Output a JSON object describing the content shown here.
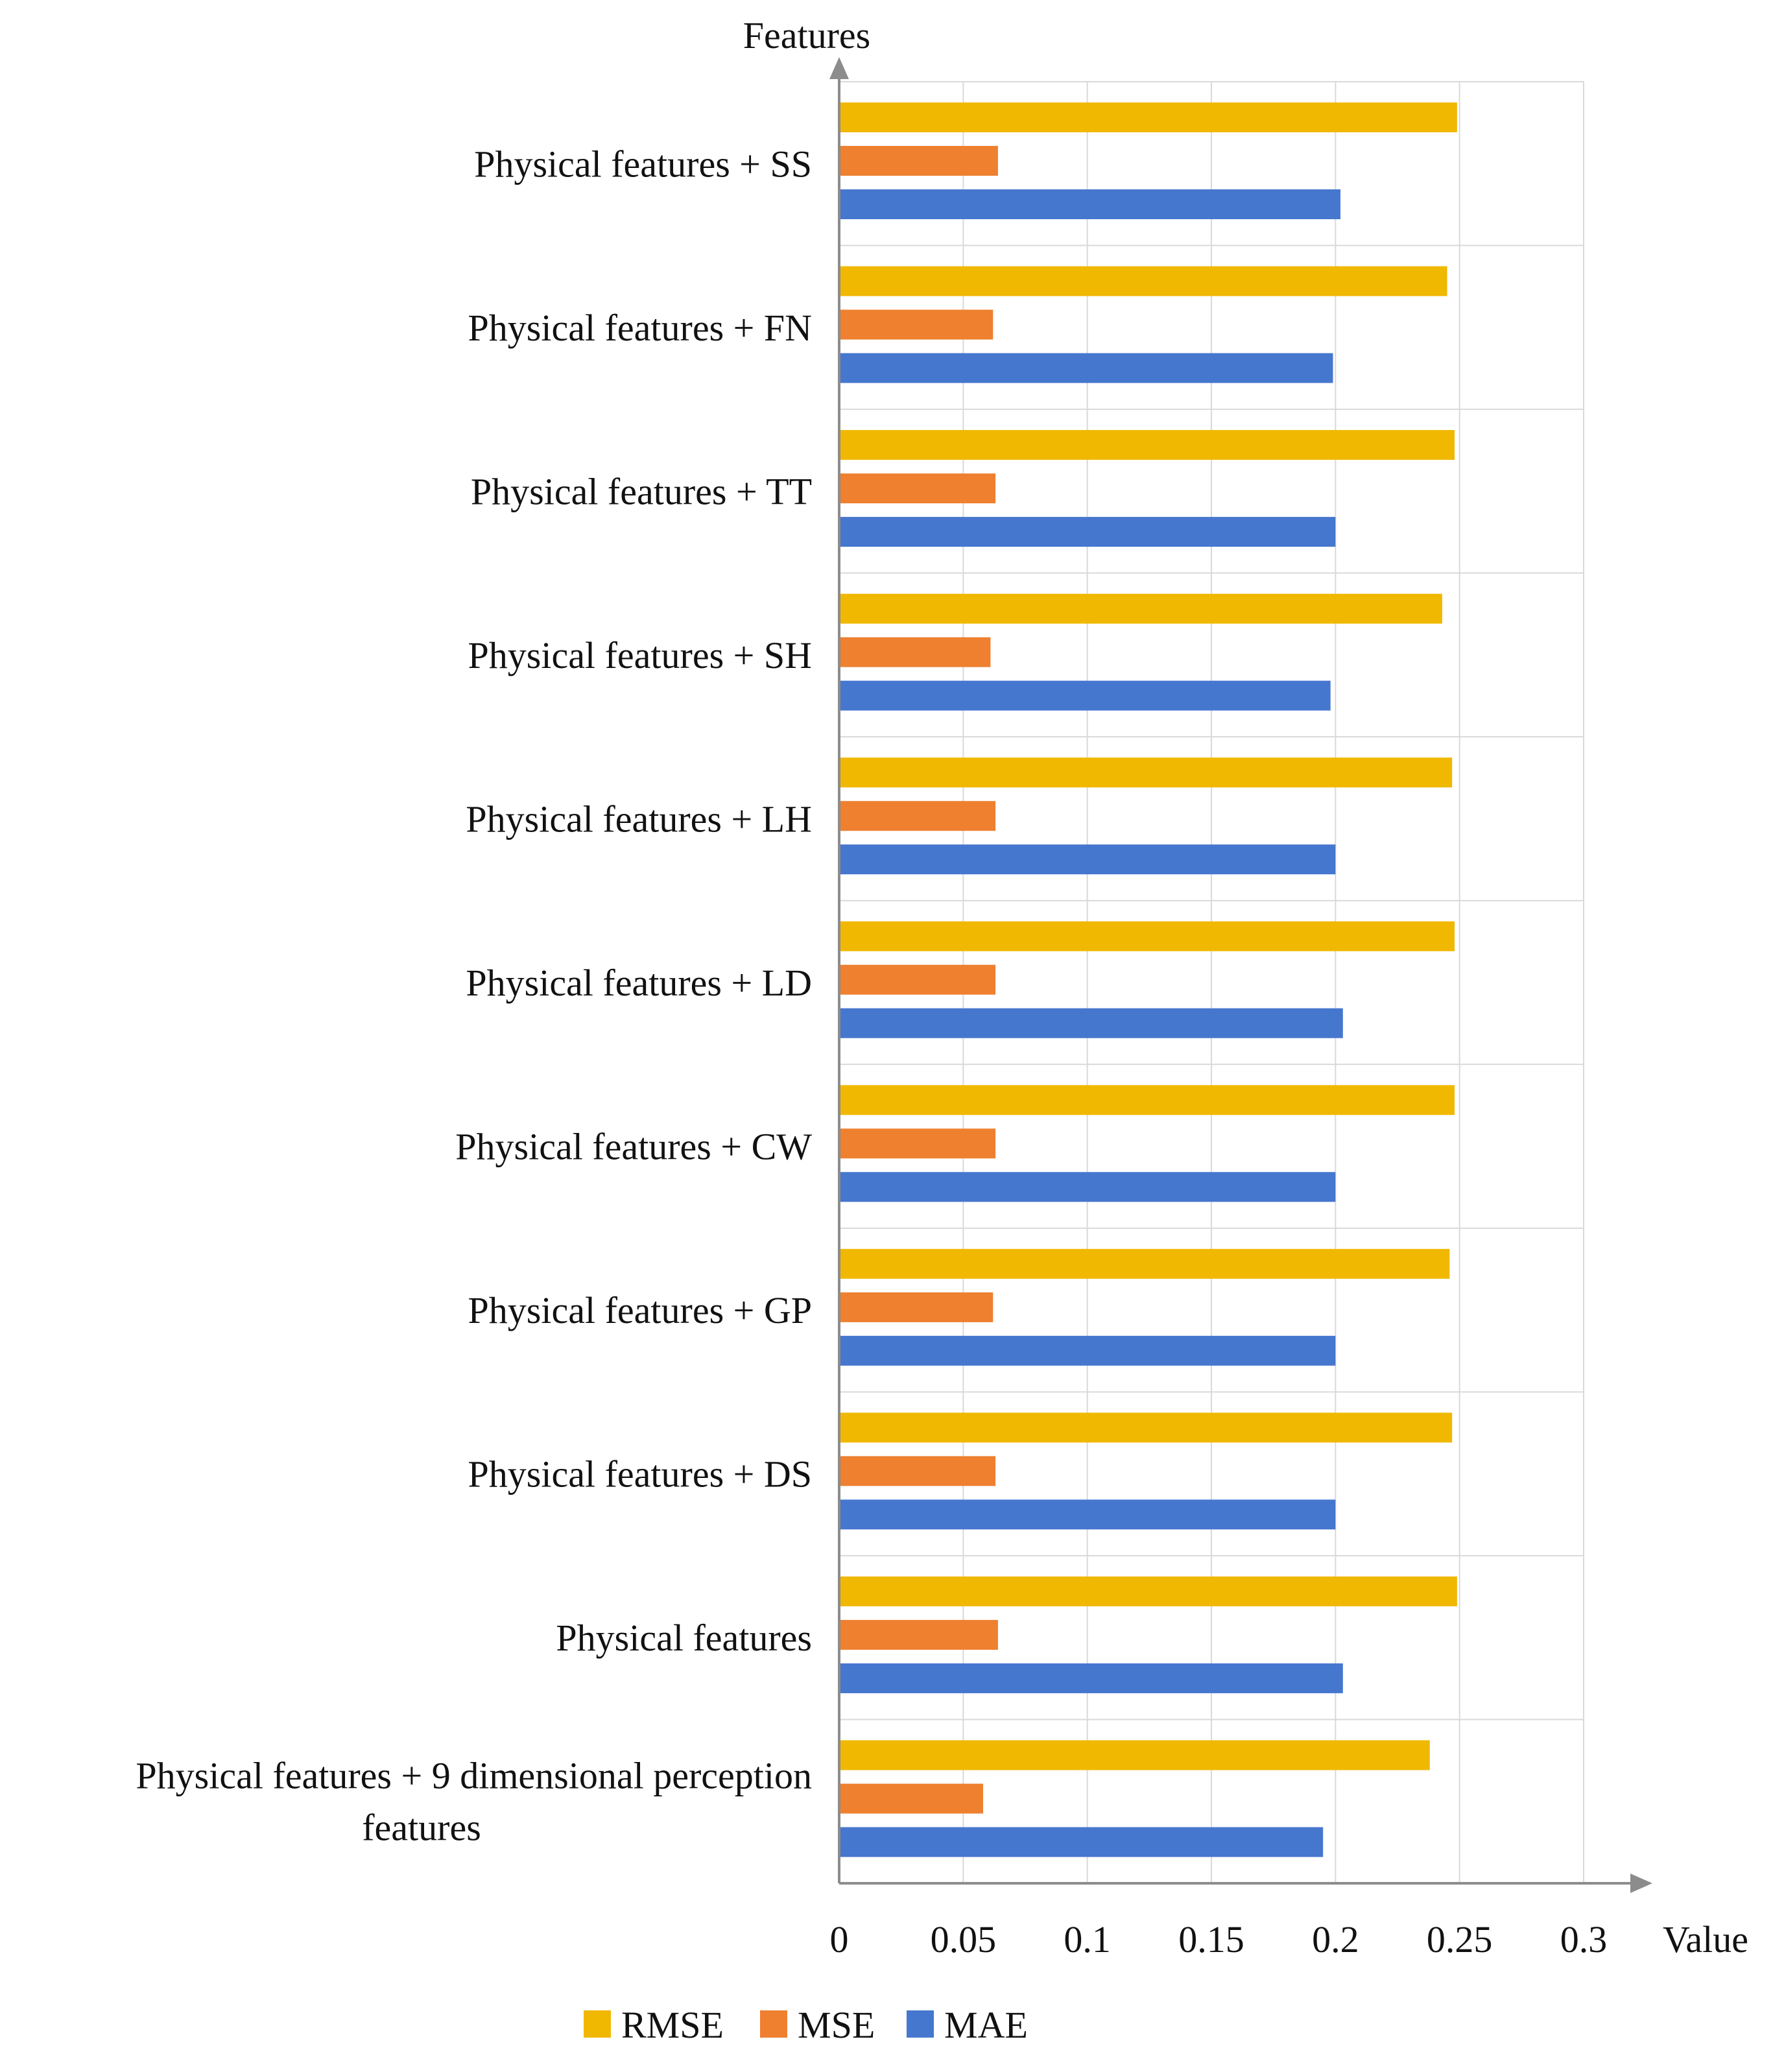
{
  "chart_data": {
    "type": "bar",
    "orientation": "horizontal",
    "y_axis_title": "Features",
    "x_axis_title": "Value",
    "xlim": [
      0,
      0.3
    ],
    "x_ticks": [
      "0",
      "0.05",
      "0.1",
      "0.15",
      "0.2",
      "0.25",
      "0.3"
    ],
    "grid": true,
    "legend_position": "bottom",
    "categories": [
      "Physical features + SS",
      "Physical features + FN",
      "Physical features + TT",
      "Physical features + SH",
      "Physical features + LH",
      "Physical features + LD",
      "Physical features + CW",
      "Physical features + GP",
      "Physical features + DS",
      "Physical features",
      "Physical features + 9 dimensional perception features"
    ],
    "series": [
      {
        "name": "RMSE",
        "color": "#F0B800",
        "values": [
          0.249,
          0.245,
          0.248,
          0.243,
          0.247,
          0.248,
          0.248,
          0.246,
          0.247,
          0.249,
          0.238
        ]
      },
      {
        "name": "MSE",
        "color": "#EE8030",
        "values": [
          0.064,
          0.062,
          0.063,
          0.061,
          0.063,
          0.063,
          0.063,
          0.062,
          0.063,
          0.064,
          0.058
        ]
      },
      {
        "name": "MAE",
        "color": "#4677CF",
        "values": [
          0.202,
          0.199,
          0.2,
          0.198,
          0.2,
          0.203,
          0.2,
          0.2,
          0.2,
          0.203,
          0.195
        ]
      }
    ]
  }
}
